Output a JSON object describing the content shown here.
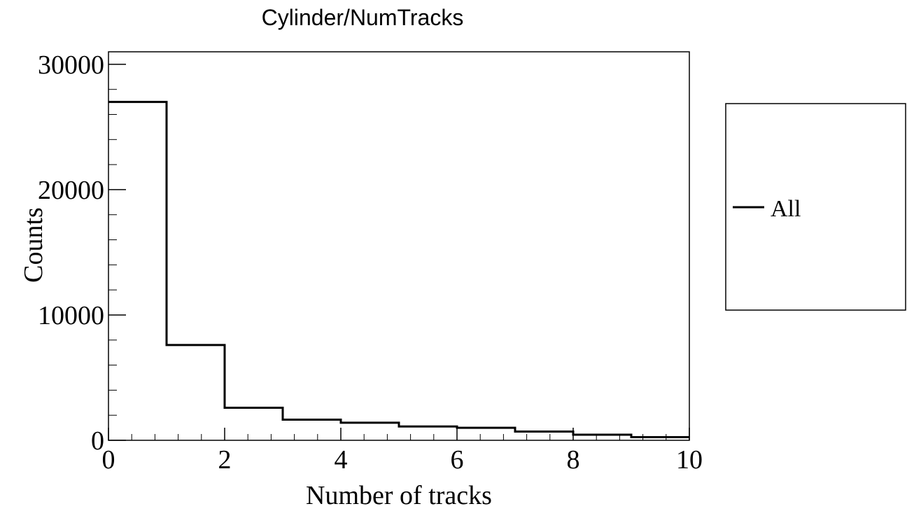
{
  "chart_data": {
    "type": "bar",
    "style": "step-histogram",
    "title": "Cylinder/NumTracks",
    "xlabel": "Number of tracks",
    "ylabel": "Counts",
    "xlim": [
      0,
      10
    ],
    "ylim": [
      0,
      31000
    ],
    "x_ticks": [
      0,
      2,
      4,
      6,
      8,
      10
    ],
    "y_ticks": [
      0,
      10000,
      20000,
      30000
    ],
    "bin_edges": [
      0,
      1,
      2,
      3,
      4,
      5,
      6,
      7,
      8,
      9,
      10
    ],
    "series": [
      {
        "name": "All",
        "color": "#000000",
        "values": [
          27000,
          7600,
          2600,
          1650,
          1400,
          1100,
          1000,
          700,
          450,
          250
        ]
      }
    ],
    "legend": {
      "placement": "right",
      "entries": [
        "All"
      ]
    },
    "grid": false
  }
}
